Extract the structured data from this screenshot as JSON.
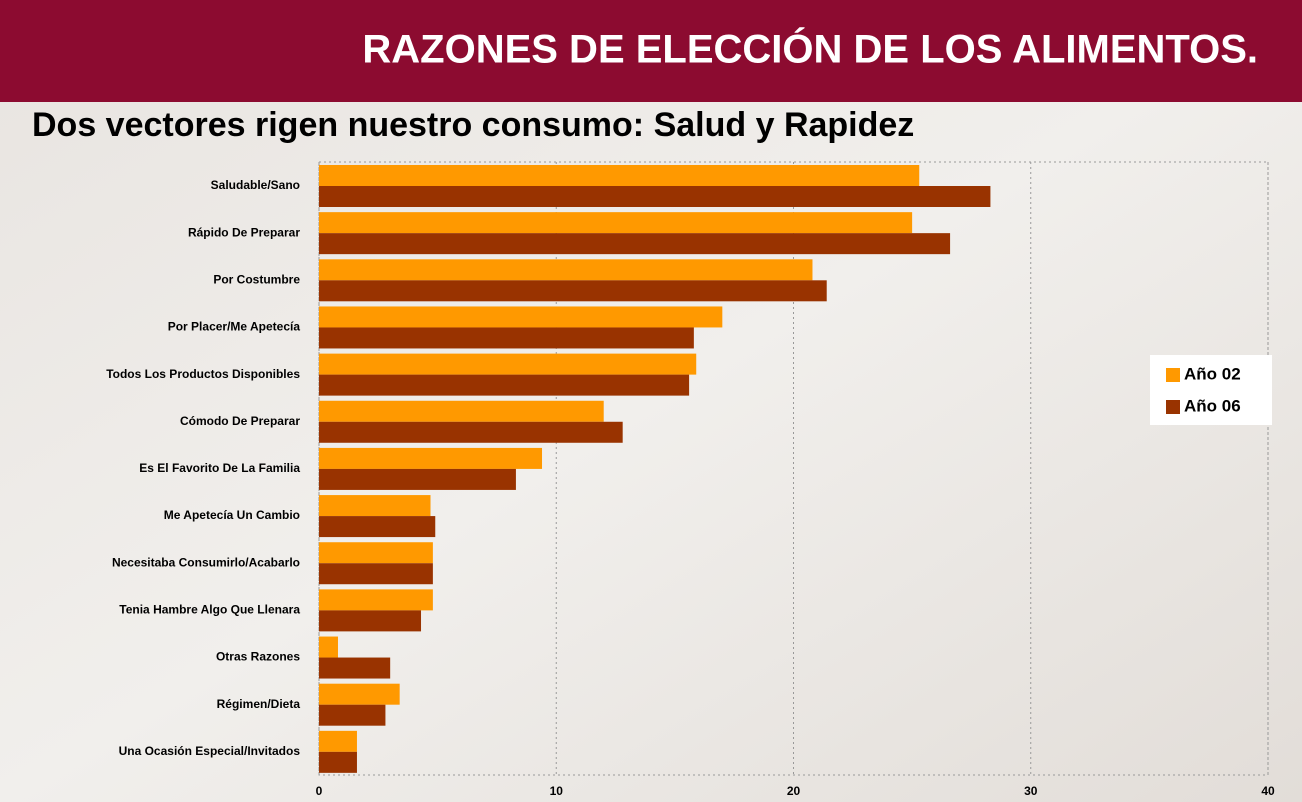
{
  "chart_data": {
    "type": "hbar",
    "title": "RAZONES DE ELECCIÓN DE LOS ALIMENTOS.",
    "subtitle": "Dos vectores rigen nuestro consumo: Salud y Rapidez",
    "categories": [
      "Saludable/Sano",
      "Rápido De Preparar",
      "Por Costumbre",
      "Por Placer/Me Apetecía",
      "Todos Los Productos Disponibles",
      "Cómodo De Preparar",
      "Es El Favorito De La Familia",
      "Me Apetecía Un Cambio",
      "Necesitaba Consumirlo/Acabarlo",
      "Tenia Hambre Algo Que Llenara",
      "Otras Razones",
      "Régimen/Dieta",
      "Una Ocasión Especial/Invitados"
    ],
    "series": [
      {
        "name": "Año 02",
        "color": "#ff9900",
        "values": [
          25.3,
          25.0,
          20.8,
          17.0,
          15.9,
          12.0,
          9.4,
          4.7,
          4.8,
          4.8,
          0.8,
          3.4,
          1.6
        ]
      },
      {
        "name": "Año 06",
        "color": "#993300",
        "values": [
          28.3,
          26.6,
          21.4,
          15.8,
          15.6,
          12.8,
          8.3,
          4.9,
          4.8,
          4.3,
          3.0,
          2.8,
          1.6
        ]
      }
    ],
    "xlim": [
      0,
      40
    ],
    "xticks": [
      0,
      10,
      20,
      30,
      40
    ],
    "grid": true,
    "legend": "right"
  }
}
